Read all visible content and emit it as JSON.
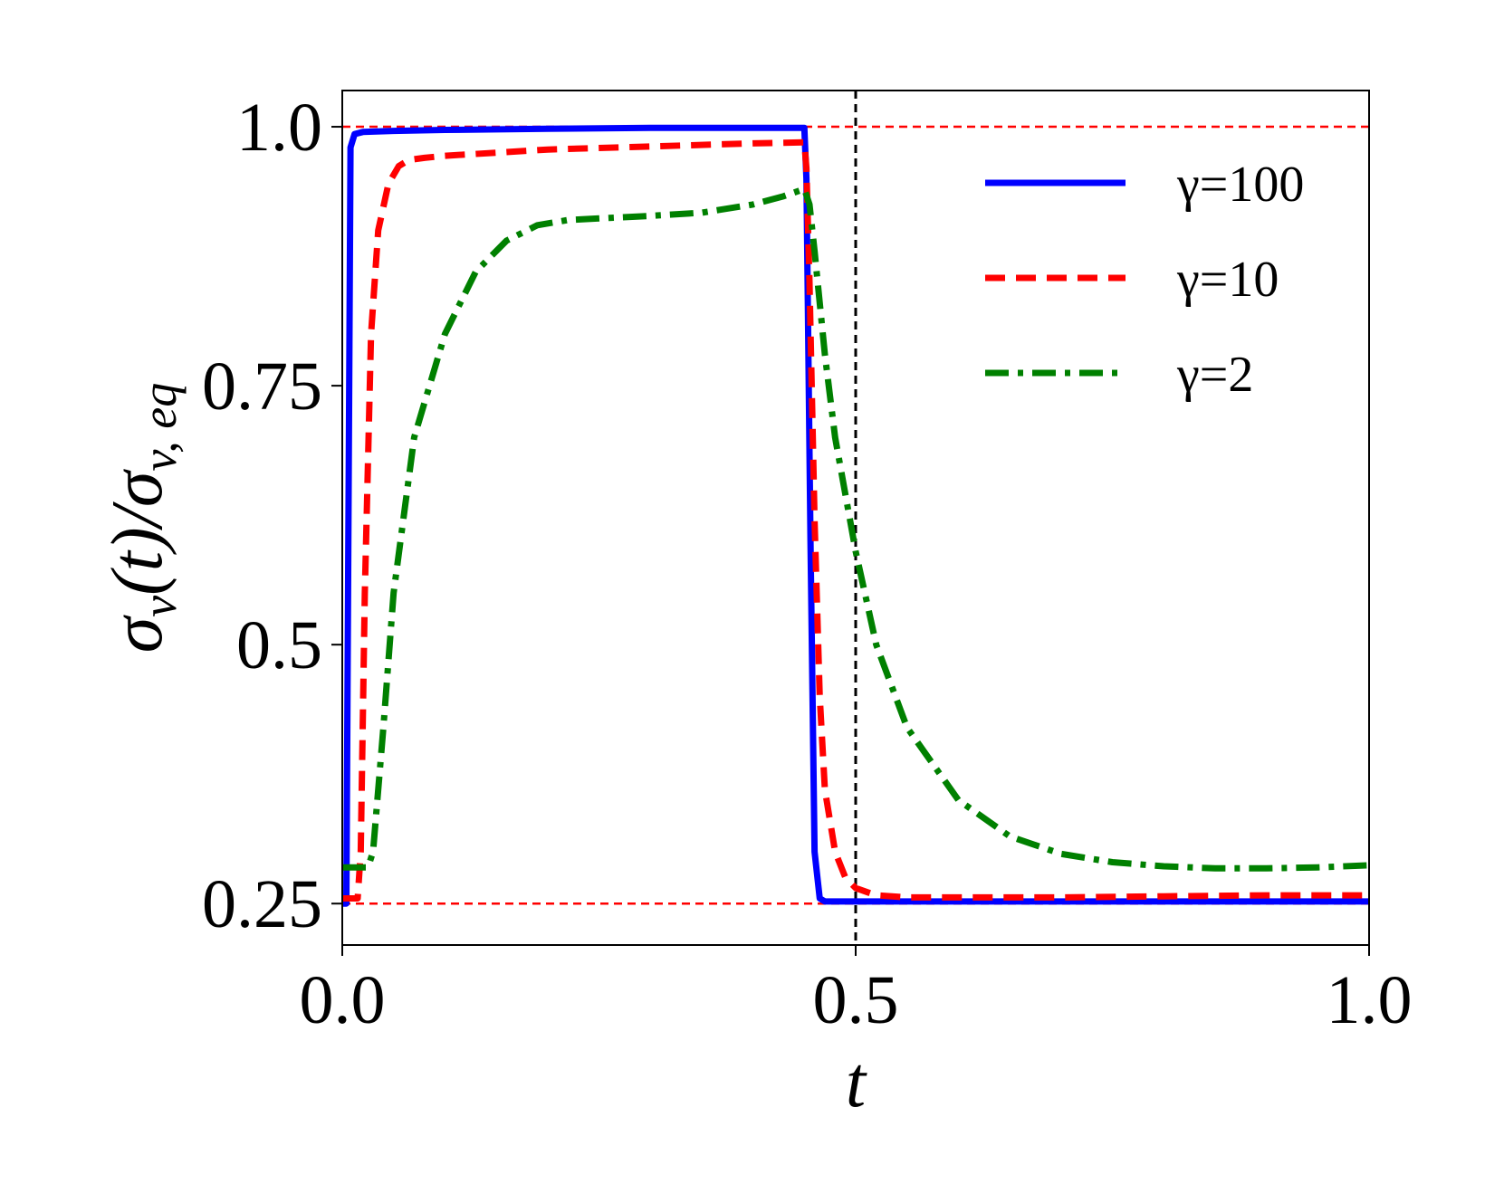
{
  "chart_data": {
    "type": "line",
    "xlabel": "t",
    "ylabel": {
      "base": "σ",
      "base_sub": "v",
      "paren": "(t)/σ",
      "denom_sub": "v, eq",
      "text": "σv(t)/σv,eq"
    },
    "xlim": [
      0.0,
      1.0
    ],
    "ylim": [
      0.21,
      1.035
    ],
    "xticks": [
      0.0,
      0.5,
      1.0
    ],
    "xtick_labels": [
      "0.0",
      "0.5",
      "1.0"
    ],
    "yticks": [
      0.25,
      0.5,
      0.75,
      1.0
    ],
    "ytick_labels": [
      "0.25",
      "0.5",
      "0.75",
      "1.0"
    ],
    "grid": false,
    "legend_position": "top-right",
    "reference_lines": [
      {
        "orientation": "horizontal",
        "value": 1.0,
        "color": "#ff0000",
        "style": "dashed"
      },
      {
        "orientation": "horizontal",
        "value": 0.25,
        "color": "#ff0000",
        "style": "dashed"
      },
      {
        "orientation": "vertical",
        "value": 0.5,
        "color": "#000000",
        "style": "dashed"
      }
    ],
    "series": [
      {
        "name": "γ=100",
        "color": "#0000ff",
        "style": "solid",
        "x": [
          0.0,
          0.004,
          0.008,
          0.012,
          0.02,
          0.05,
          0.1,
          0.2,
          0.3,
          0.4,
          0.45,
          0.452,
          0.456,
          0.46,
          0.465,
          0.47,
          0.5,
          0.6,
          0.7,
          0.8,
          0.9,
          1.0
        ],
        "y": [
          0.25,
          0.25,
          0.98,
          0.993,
          0.995,
          0.996,
          0.997,
          0.998,
          0.999,
          0.999,
          0.999,
          0.95,
          0.6,
          0.3,
          0.255,
          0.252,
          0.252,
          0.252,
          0.252,
          0.252,
          0.252,
          0.252
        ]
      },
      {
        "name": "γ=10",
        "color": "#ff0000",
        "style": "dashed",
        "x": [
          0.0,
          0.015,
          0.018,
          0.022,
          0.028,
          0.035,
          0.045,
          0.055,
          0.065,
          0.08,
          0.1,
          0.15,
          0.2,
          0.3,
          0.4,
          0.45,
          0.452,
          0.455,
          0.46,
          0.465,
          0.47,
          0.48,
          0.49,
          0.5,
          0.52,
          0.55,
          0.6,
          0.7,
          0.8,
          0.9,
          1.0
        ],
        "y": [
          0.255,
          0.255,
          0.3,
          0.55,
          0.8,
          0.9,
          0.945,
          0.962,
          0.968,
          0.97,
          0.972,
          0.975,
          0.978,
          0.981,
          0.984,
          0.985,
          0.96,
          0.85,
          0.62,
          0.45,
          0.36,
          0.3,
          0.275,
          0.265,
          0.258,
          0.256,
          0.256,
          0.256,
          0.257,
          0.258,
          0.258
        ]
      },
      {
        "name": "γ=2",
        "color": "#008000",
        "style": "dashdot",
        "x": [
          0.0,
          0.025,
          0.03,
          0.04,
          0.05,
          0.07,
          0.1,
          0.13,
          0.16,
          0.19,
          0.22,
          0.26,
          0.3,
          0.35,
          0.4,
          0.43,
          0.45,
          0.455,
          0.46,
          0.47,
          0.48,
          0.5,
          0.52,
          0.55,
          0.6,
          0.65,
          0.7,
          0.75,
          0.8,
          0.85,
          0.9,
          0.95,
          1.0
        ],
        "y": [
          0.285,
          0.285,
          0.3,
          0.42,
          0.55,
          0.7,
          0.8,
          0.86,
          0.89,
          0.905,
          0.91,
          0.912,
          0.914,
          0.917,
          0.925,
          0.933,
          0.94,
          0.925,
          0.88,
          0.78,
          0.7,
          0.59,
          0.5,
          0.42,
          0.35,
          0.315,
          0.298,
          0.29,
          0.286,
          0.284,
          0.284,
          0.285,
          0.287
        ]
      }
    ]
  }
}
